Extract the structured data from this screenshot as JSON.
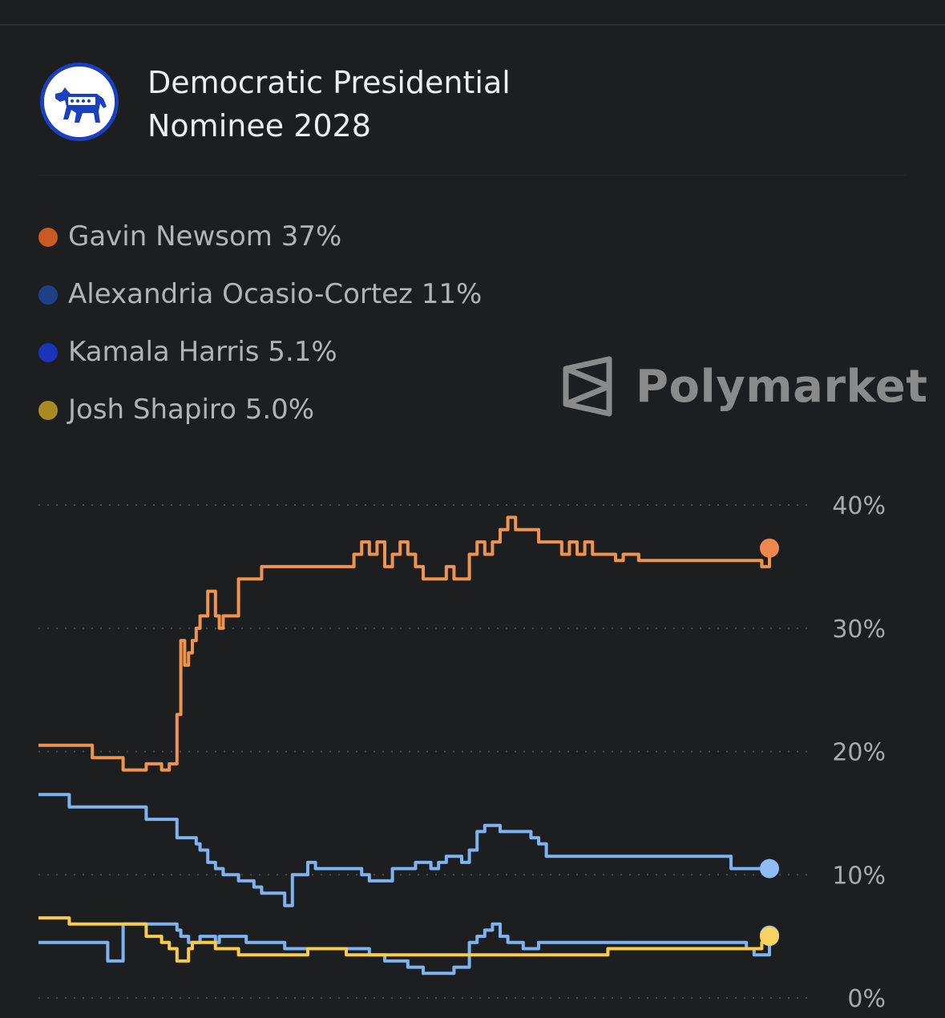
{
  "header": {
    "title": "Democratic Presidential Nominee 2028",
    "logo_icon": "democratic-donkey-icon"
  },
  "legend": [
    {
      "label": "Gavin Newsom 37%",
      "color": "#c85a24"
    },
    {
      "label": "Alexandria Ocasio-Cortez 11%",
      "color": "#1e3f8a"
    },
    {
      "label": "Kamala Harris 5.1%",
      "color": "#1a33b8"
    },
    {
      "label": "Josh Shapiro 5.0%",
      "color": "#a88a23"
    }
  ],
  "brand": {
    "name": "Polymarket",
    "icon": "polymarket-logo-icon"
  },
  "chart_data": {
    "type": "line",
    "title": "",
    "xlabel": "",
    "ylabel": "",
    "ylim": [
      0,
      40
    ],
    "y_ticks": [
      {
        "value": 40,
        "label": "40%"
      },
      {
        "value": 30,
        "label": "30%"
      },
      {
        "value": 20,
        "label": "20%"
      },
      {
        "value": 10,
        "label": "10%"
      },
      {
        "value": 0,
        "label": "0%"
      }
    ],
    "x": [
      0,
      4,
      7,
      9,
      11,
      12,
      14,
      16,
      17,
      18,
      18.5,
      19,
      19.5,
      20,
      20.5,
      21,
      22,
      23,
      23.5,
      24,
      25,
      26,
      27,
      28,
      29,
      30,
      31,
      32,
      33,
      35,
      36,
      37,
      38,
      39,
      40,
      41,
      42,
      43,
      44,
      45,
      46,
      47,
      48,
      49,
      50,
      51,
      52,
      53,
      54,
      55,
      56,
      57,
      58,
      59,
      60,
      61,
      62,
      63,
      64,
      65,
      66,
      67,
      68,
      69,
      70,
      71,
      72,
      73,
      74,
      75,
      76,
      77,
      78,
      79,
      80,
      81,
      82,
      83,
      84,
      85,
      86,
      87,
      88,
      89,
      90,
      91,
      92,
      93,
      94,
      95
    ],
    "series": [
      {
        "name": "Gavin Newsom",
        "color": "#f0934d",
        "dot_color": "#f0874d",
        "values": [
          20.5,
          20.5,
          19.5,
          19.5,
          18.5,
          18.5,
          19,
          18.5,
          19,
          23,
          29,
          27,
          28,
          29,
          30,
          31,
          33,
          31,
          30,
          31,
          31,
          34,
          34,
          34,
          35,
          35,
          35,
          35,
          35,
          35,
          35,
          35,
          35,
          35,
          35,
          36,
          37,
          36,
          37,
          35,
          36,
          37,
          36,
          35,
          34,
          34,
          34,
          35,
          34,
          34,
          36,
          37,
          36,
          37,
          38,
          39,
          38,
          38,
          38,
          37,
          37,
          37,
          36,
          37,
          36,
          37,
          36,
          36,
          36,
          35.5,
          36,
          36,
          35.5,
          35.5,
          35.5,
          35.5,
          35.5,
          35.5,
          35.5,
          35.5,
          35.5,
          35.5,
          35.5,
          35.5,
          35.5,
          35.5,
          35.5,
          35.5,
          35,
          36.5
        ]
      },
      {
        "name": "Alexandria Ocasio-Cortez",
        "color": "#7fb3f0",
        "dot_color": "#8fbcf5",
        "values": [
          16.5,
          15.5,
          15.5,
          15.5,
          15.5,
          15.5,
          14.5,
          14.5,
          14.5,
          13,
          13,
          13,
          13,
          13,
          12.5,
          12,
          11,
          10.5,
          10.5,
          10,
          10,
          9.5,
          9.5,
          9,
          8.5,
          8.5,
          8.5,
          7.5,
          10,
          11,
          10.5,
          10.5,
          10.5,
          10.5,
          10.5,
          10.5,
          10,
          9.5,
          9.5,
          9.5,
          10.5,
          10.5,
          10.5,
          11,
          11,
          10.5,
          11,
          11.5,
          11.5,
          11,
          12,
          13.5,
          14,
          14,
          13.5,
          13.5,
          13.5,
          13.5,
          13,
          12.5,
          11.5,
          11.5,
          11.5,
          11.5,
          11.5,
          11.5,
          11.5,
          11.5,
          11.5,
          11.5,
          11.5,
          11.5,
          11.5,
          11.5,
          11.5,
          11.5,
          11.5,
          11.5,
          11.5,
          11.5,
          11.5,
          11.5,
          11.5,
          11.5,
          10.5,
          10.5,
          10.5,
          10.5,
          10.5,
          10.5
        ]
      },
      {
        "name": "Kamala Harris",
        "color": "#7fb3f0",
        "dot_color": "#8fbcf5",
        "values": [
          4.5,
          4.5,
          4.5,
          3,
          6,
          6,
          6,
          6,
          6,
          5.5,
          5,
          5,
          4.5,
          4.5,
          4.5,
          5,
          5,
          4.5,
          5,
          5,
          5,
          5,
          4.5,
          4.5,
          4.5,
          4.5,
          4.5,
          4,
          4,
          4,
          4,
          4,
          4,
          4,
          4,
          4,
          4,
          3.5,
          3.5,
          3,
          3,
          3,
          2.5,
          2.5,
          2,
          2,
          2,
          2,
          2.5,
          2.5,
          4.5,
          5,
          5.5,
          6,
          5,
          4.5,
          4.5,
          4,
          4,
          4.5,
          4.5,
          4.5,
          4.5,
          4.5,
          4.5,
          4.5,
          4.5,
          4.5,
          4.5,
          4.5,
          4.5,
          4.5,
          4.5,
          4.5,
          4.5,
          4.5,
          4.5,
          4.5,
          4.5,
          4.5,
          4.5,
          4.5,
          4.5,
          4.5,
          4.5,
          4.5,
          4,
          3.5,
          3.5,
          5.1
        ]
      },
      {
        "name": "Josh Shapiro",
        "color": "#f7cc4a",
        "dot_color": "#f8d25e",
        "values": [
          6.5,
          6,
          6,
          6,
          6,
          6,
          5,
          4.5,
          4,
          3,
          3,
          3,
          4,
          4.5,
          4.5,
          4.5,
          4.5,
          4,
          4,
          4,
          4,
          3.5,
          3.5,
          3.5,
          3.5,
          3.5,
          3.5,
          3.5,
          3.5,
          4,
          4,
          4,
          4,
          4,
          3.5,
          3.5,
          3.5,
          3.5,
          3.5,
          3.5,
          3.5,
          3.5,
          3.5,
          3.5,
          3.5,
          3.5,
          3.5,
          3.5,
          3.5,
          3.5,
          3.5,
          3.5,
          3.5,
          3.5,
          3.5,
          3.5,
          3.5,
          3.5,
          3.5,
          3.5,
          3.5,
          3.5,
          3.5,
          3.5,
          3.5,
          3.5,
          3.5,
          3.5,
          4,
          4,
          4,
          4,
          4,
          4,
          4,
          4,
          4,
          4,
          4,
          4,
          4,
          4,
          4,
          4,
          4,
          4,
          4,
          4,
          4.5,
          5
        ]
      }
    ],
    "grid": true,
    "legend_position": "top-left"
  }
}
